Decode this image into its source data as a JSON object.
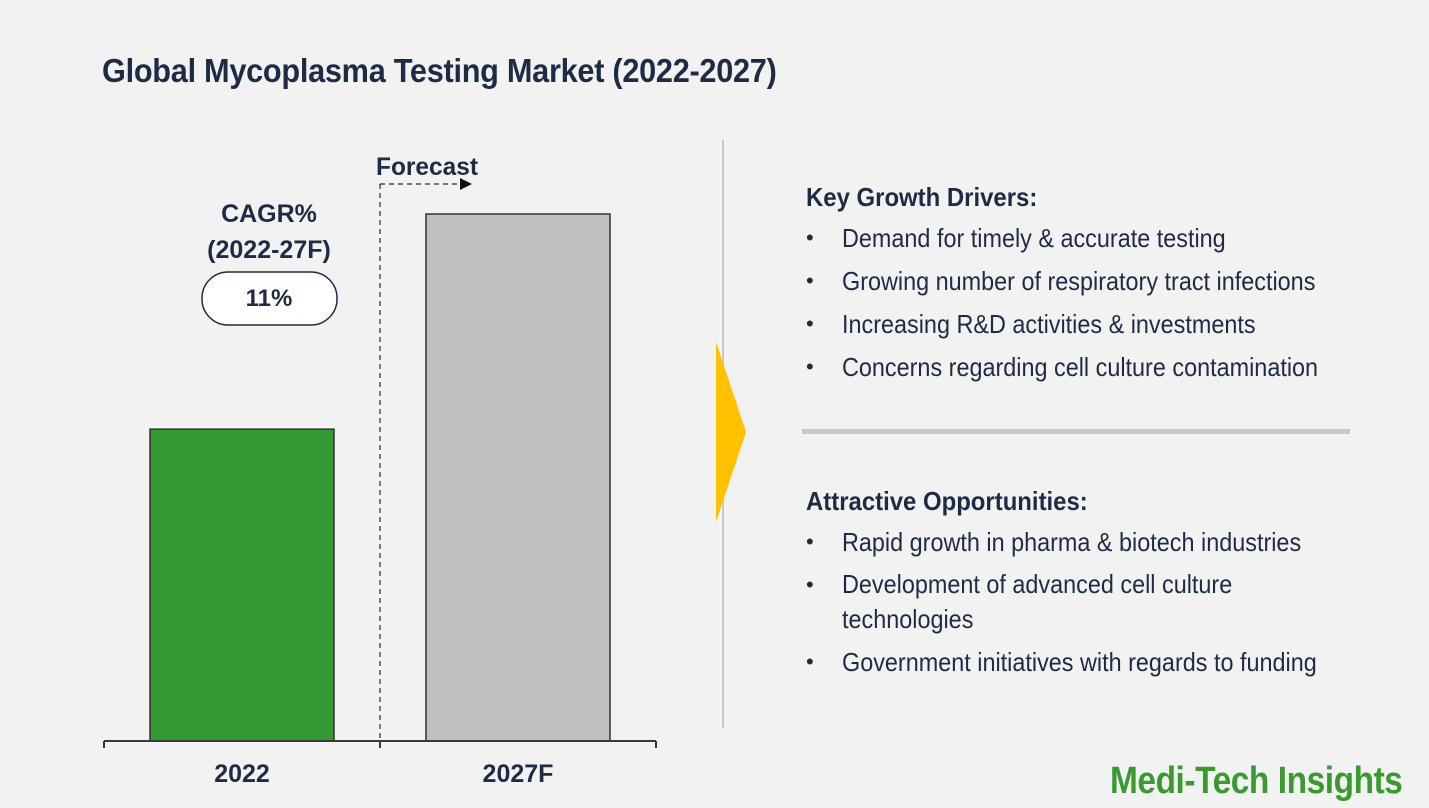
{
  "title": "Global Mycoplasma Testing Market (2022-2027)",
  "chart_data": {
    "type": "bar",
    "categories": [
      "2022",
      "2027F"
    ],
    "values": [
      1.0,
      1.69
    ],
    "colors": [
      "#339933",
      "#c0c0c0"
    ],
    "forecast_label": "Forecast",
    "cagr_label_line1": "CAGR%",
    "cagr_label_line2": "(2022-27F)",
    "cagr_value": "11%"
  },
  "drivers": {
    "heading": "Key Growth Drivers:",
    "items": [
      "Demand for timely & accurate testing",
      "Growing number of respiratory tract infections",
      "Increasing R&D activities & investments",
      "Concerns regarding cell culture contamination"
    ]
  },
  "opportunities": {
    "heading": "Attractive Opportunities:",
    "items": [
      "Rapid growth in pharma & biotech industries",
      "Development of advanced cell culture",
      "technologies",
      "Government initiatives with regards to funding"
    ]
  },
  "bullet_char": "•",
  "logo": "Medi-Tech Insights",
  "colors": {
    "accent_arrow": "#ffc000",
    "logo_green": "#3a9a2f",
    "text_navy": "#1f2b45"
  }
}
